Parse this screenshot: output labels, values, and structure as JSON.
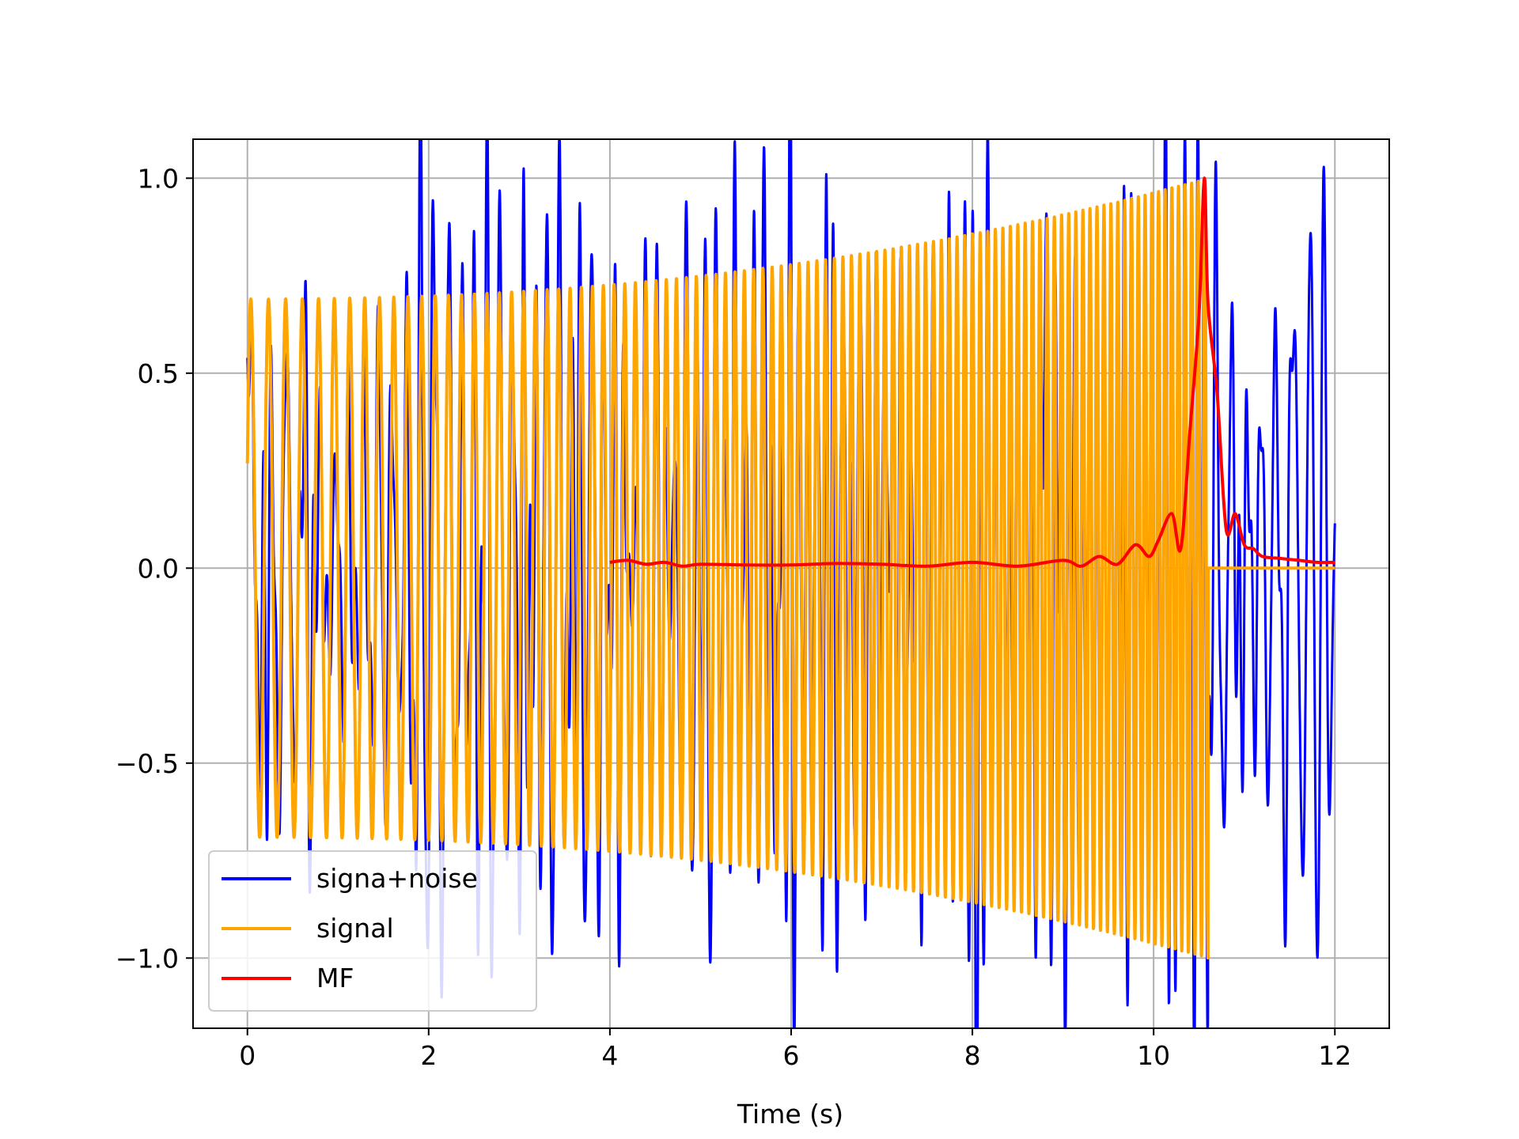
{
  "chart_data": {
    "type": "line",
    "title": "",
    "xlabel": "Time (s)",
    "ylabel": "",
    "xlim": [
      -0.6,
      12.6
    ],
    "ylim": [
      -1.18,
      1.1
    ],
    "x_ticks": [
      0,
      2,
      4,
      6,
      8,
      10,
      12
    ],
    "y_ticks": [
      -1.0,
      -0.5,
      0.0,
      0.5,
      1.0
    ],
    "x_tick_labels": [
      "0",
      "2",
      "4",
      "6",
      "8",
      "10",
      "12"
    ],
    "y_tick_labels": [
      "−1.0",
      "−0.5",
      "0.0",
      "0.5",
      "1.0"
    ],
    "grid": true,
    "legend_position": "lower-left",
    "series": [
      {
        "name": "signa+noise",
        "color": "#0000ff",
        "description_values": {
          "x_range": [
            0,
            12
          ],
          "envelope_peaks": [
            {
              "x": 0.05,
              "y": 0.6
            },
            {
              "x": 0.22,
              "y": -0.7
            },
            {
              "x": 1.9,
              "y": 0.72
            },
            {
              "x": 1.88,
              "y": -0.9
            },
            {
              "x": 5.72,
              "y": 0.89
            },
            {
              "x": 5.8,
              "y": -1.0
            },
            {
              "x": 7.08,
              "y": 0.87
            },
            {
              "x": 8.05,
              "y": -1.08
            },
            {
              "x": 8.8,
              "y": 1.0
            },
            {
              "x": 11.45,
              "y": 0.74
            },
            {
              "x": 11.5,
              "y": -0.68
            }
          ]
        }
      },
      {
        "name": "signal",
        "color": "#ffa500",
        "description_values": {
          "x_range": [
            0,
            10.6
          ],
          "start_amplitude": 0.69,
          "end_amplitude": 1.0,
          "start_freq_hz": 5.0,
          "end_freq_hz": 14.0,
          "after_end_value": 0.0
        }
      },
      {
        "name": "MF",
        "color": "#ff0000",
        "points": [
          [
            4.0,
            0.015
          ],
          [
            4.2,
            0.02
          ],
          [
            4.4,
            0.01
          ],
          [
            4.6,
            0.015
          ],
          [
            4.8,
            0.005
          ],
          [
            5.0,
            0.01
          ],
          [
            5.5,
            0.008
          ],
          [
            6.0,
            0.008
          ],
          [
            6.5,
            0.012
          ],
          [
            7.0,
            0.01
          ],
          [
            7.5,
            0.005
          ],
          [
            8.0,
            0.015
          ],
          [
            8.5,
            0.005
          ],
          [
            9.0,
            0.02
          ],
          [
            9.2,
            0.005
          ],
          [
            9.4,
            0.03
          ],
          [
            9.6,
            0.01
          ],
          [
            9.8,
            0.06
          ],
          [
            9.95,
            0.03
          ],
          [
            10.05,
            0.07
          ],
          [
            10.2,
            0.14
          ],
          [
            10.3,
            0.05
          ],
          [
            10.4,
            0.35
          ],
          [
            10.5,
            0.65
          ],
          [
            10.56,
            1.0
          ],
          [
            10.6,
            0.68
          ],
          [
            10.7,
            0.45
          ],
          [
            10.8,
            0.1
          ],
          [
            10.9,
            0.14
          ],
          [
            11.0,
            0.06
          ],
          [
            11.1,
            0.05
          ],
          [
            11.2,
            0.03
          ],
          [
            11.4,
            0.025
          ],
          [
            11.6,
            0.02
          ],
          [
            11.8,
            0.015
          ],
          [
            12.0,
            0.015
          ]
        ]
      }
    ]
  }
}
